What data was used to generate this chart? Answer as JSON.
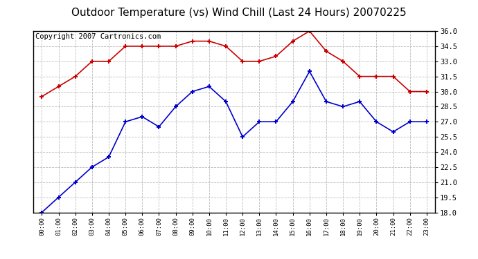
{
  "title": "Outdoor Temperature (vs) Wind Chill (Last 24 Hours) 20070225",
  "copyright_text": "Copyright 2007 Cartronics.com",
  "hours": [
    "00:00",
    "01:00",
    "02:00",
    "03:00",
    "04:00",
    "05:00",
    "06:00",
    "07:00",
    "08:00",
    "09:00",
    "10:00",
    "11:00",
    "12:00",
    "13:00",
    "14:00",
    "15:00",
    "16:00",
    "17:00",
    "18:00",
    "19:00",
    "20:00",
    "21:00",
    "22:00",
    "23:00"
  ],
  "temp_red": [
    29.5,
    30.5,
    31.5,
    33.0,
    33.0,
    34.5,
    34.5,
    34.5,
    34.5,
    35.0,
    35.0,
    34.5,
    33.0,
    33.0,
    33.5,
    35.0,
    36.0,
    34.0,
    33.0,
    31.5,
    31.5,
    31.5,
    30.0,
    30.0
  ],
  "wind_chill_blue": [
    18.0,
    19.5,
    21.0,
    22.5,
    23.5,
    27.0,
    27.5,
    26.5,
    28.5,
    30.0,
    30.5,
    29.0,
    25.5,
    27.0,
    27.0,
    29.0,
    32.0,
    29.0,
    28.5,
    29.0,
    27.0,
    26.0,
    27.0,
    27.0
  ],
  "ylim": [
    18.0,
    36.0
  ],
  "yticks": [
    18.0,
    19.5,
    21.0,
    22.5,
    24.0,
    25.5,
    27.0,
    28.5,
    30.0,
    31.5,
    33.0,
    34.5,
    36.0
  ],
  "red_color": "#cc0000",
  "blue_color": "#0000cc",
  "grid_color": "#bbbbbb",
  "bg_color": "#ffffff",
  "plot_bg_color": "#ffffff",
  "title_fontsize": 11,
  "copyright_fontsize": 7.5
}
